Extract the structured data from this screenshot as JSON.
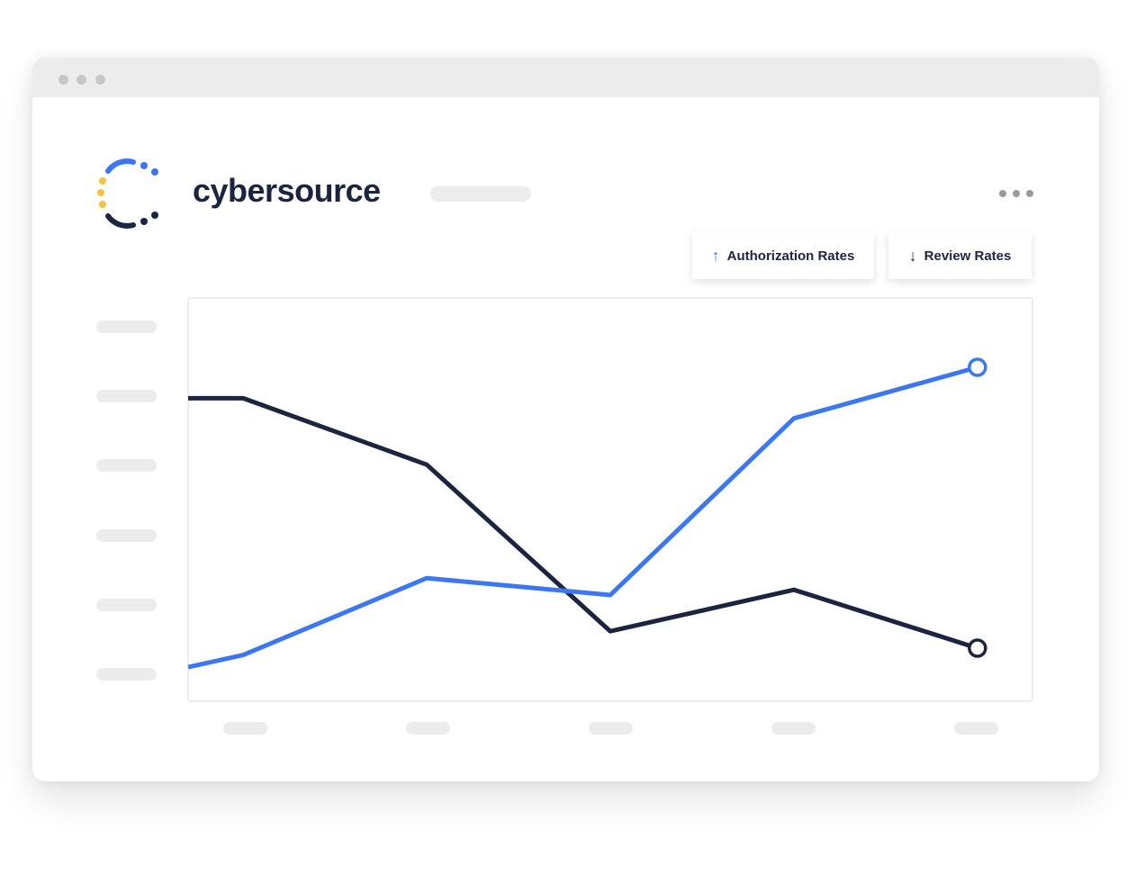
{
  "brand": {
    "name": "cybersource",
    "colors": {
      "blue": "#3b78f0",
      "yellow": "#f5c23e",
      "navy": "#1b2540"
    }
  },
  "window": {
    "controls": [
      "close-dot",
      "minimize-dot",
      "maximize-dot"
    ]
  },
  "header": {
    "menu_icon": "more-horizontal-icon"
  },
  "toolbar": {
    "authorization_rates": {
      "label": "Authorization Rates",
      "icon": "arrow-up-icon",
      "arrow": "↑",
      "color": "#3b78f0"
    },
    "review_rates": {
      "label": "Review Rates",
      "icon": "arrow-down-icon",
      "arrow": "↓",
      "color": "#1b2540"
    }
  },
  "chart_data": {
    "type": "line",
    "title": "",
    "xlabel": "",
    "ylabel": "",
    "x": [
      0,
      0.3,
      1.3,
      2.3,
      3.3,
      4.3
    ],
    "xlim": [
      0,
      4.6
    ],
    "ylim": [
      0,
      100
    ],
    "grid": false,
    "legend": "none",
    "series": [
      {
        "name": "Authorization Rates",
        "color": "#3b78f0",
        "values": [
          8.5,
          11.5,
          30.6,
          26.4,
          70.3,
          83.0
        ]
      },
      {
        "name": "Review Rates",
        "color": "#1b2540",
        "values": [
          75.3,
          75.3,
          58.8,
          17.4,
          27.7,
          13.2
        ]
      }
    ]
  }
}
